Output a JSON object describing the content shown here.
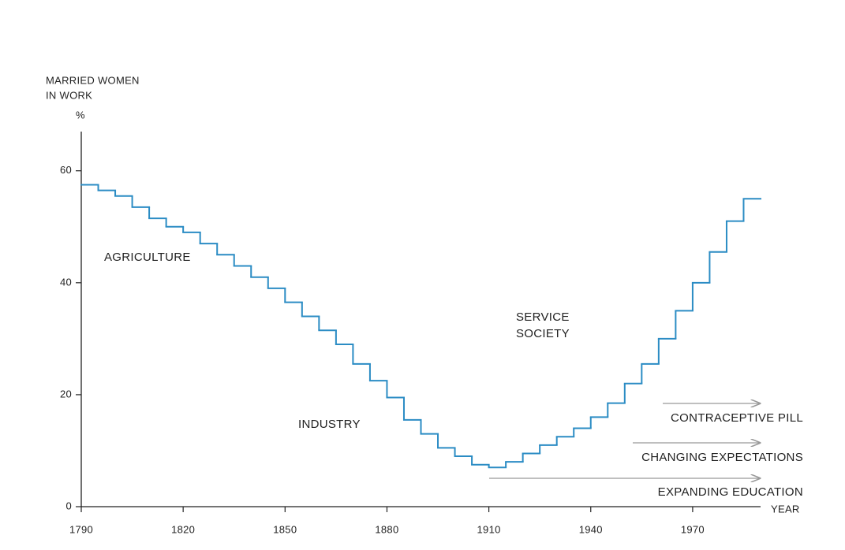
{
  "chart_data": {
    "type": "step",
    "y_label": [
      "MARRIED WOMEN",
      "IN WORK"
    ],
    "y_unit": "%",
    "x_label": "YEAR",
    "x": [
      1790,
      1795,
      1800,
      1805,
      1810,
      1815,
      1820,
      1825,
      1830,
      1835,
      1840,
      1845,
      1850,
      1855,
      1860,
      1865,
      1870,
      1875,
      1880,
      1885,
      1890,
      1895,
      1900,
      1905,
      1910,
      1915,
      1920,
      1925,
      1930,
      1935,
      1940,
      1945,
      1950,
      1955,
      1960,
      1965,
      1970,
      1975,
      1980,
      1985
    ],
    "values": [
      57.5,
      56.5,
      55.5,
      53.5,
      51.5,
      50,
      49,
      47,
      45,
      43,
      41,
      39,
      36.5,
      34,
      31.5,
      29,
      25.5,
      22.5,
      19.5,
      15.5,
      13,
      10.5,
      9,
      7.5,
      7,
      8,
      9.5,
      11,
      12.5,
      14,
      16,
      18.5,
      22,
      25.5,
      30,
      35,
      40,
      45.5,
      51,
      55
    ],
    "color": "#2b8cc4",
    "xlim": [
      1790,
      1990
    ],
    "ylim": [
      0,
      67
    ],
    "xticks": [
      1790,
      1820,
      1850,
      1880,
      1910,
      1940,
      1970
    ],
    "yticks": [
      0,
      20,
      40,
      60
    ],
    "annotations": [
      "AGRICULTURE",
      "INDUSTRY",
      "SERVICE",
      "SOCIETY"
    ],
    "drivers": [
      "CONTRACEPTIVE PILL",
      "CHANGING EXPECTATIONS",
      "EXPANDING EDUCATION"
    ]
  }
}
